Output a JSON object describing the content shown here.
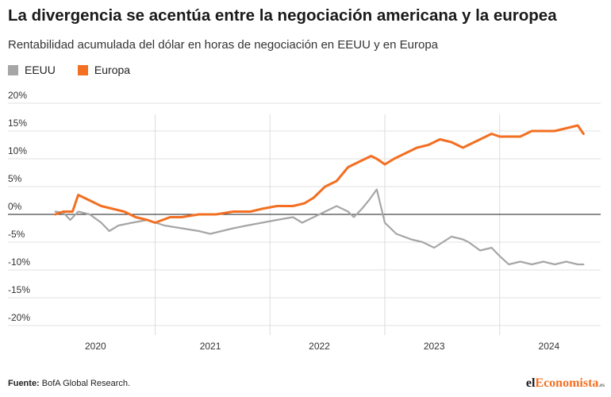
{
  "header": {
    "title": "La divergencia se acentúa entre la negociación americana y la europea",
    "subtitle": "Rentabilidad acumulada del dólar en horas de negociación en EEUU y en Europa"
  },
  "footer": {
    "source_label": "Fuente:",
    "source_text": "BofA Global Research.",
    "logo_prefix": "el",
    "logo_brand": "Economista",
    "logo_suffix": ".es"
  },
  "chart_data": {
    "type": "line",
    "title": "La divergencia se acentúa entre la negociación americana y la europea",
    "subtitle": "Rentabilidad acumulada del dólar en horas de negociación en EEUU y en Europa",
    "xlabel": "",
    "ylabel": "",
    "ylim": [
      -20,
      20
    ],
    "y_ticks": [
      20,
      15,
      10,
      5,
      0,
      -5,
      -10,
      -15,
      -20
    ],
    "y_tick_labels": [
      "20%",
      "15%",
      "10%",
      "5%",
      "0%",
      "-5%",
      "-10%",
      "-15%",
      "-20%"
    ],
    "x_range": [
      2019.6,
      2024.5
    ],
    "x_year_labels": [
      "2020",
      "2021",
      "2022",
      "2023",
      "2024"
    ],
    "x_year_label_positions": [
      2020.1,
      2021.1,
      2022.05,
      2023.05,
      2024.05
    ],
    "x_dividers": [
      2020.62,
      2021.62,
      2022.62,
      2023.62
    ],
    "grid": true,
    "zero_line": true,
    "legend_position": "top-left",
    "series": [
      {
        "name": "EEUU",
        "color": "#a6a6a6",
        "x": [
          2019.75,
          2019.82,
          2019.88,
          2019.95,
          2020.05,
          2020.15,
          2020.22,
          2020.3,
          2020.42,
          2020.55,
          2020.7,
          2020.85,
          2021.0,
          2021.1,
          2021.2,
          2021.3,
          2021.42,
          2021.55,
          2021.68,
          2021.82,
          2021.9,
          2022.0,
          2022.1,
          2022.2,
          2022.3,
          2022.35,
          2022.42,
          2022.48,
          2022.55,
          2022.62,
          2022.72,
          2022.85,
          2022.95,
          2023.05,
          2023.2,
          2023.3,
          2023.35,
          2023.45,
          2023.55,
          2023.62,
          2023.7,
          2023.8,
          2023.9,
          2024.0,
          2024.1,
          2024.2,
          2024.3,
          2024.35
        ],
        "y": [
          0.5,
          0.3,
          -1.0,
          0.5,
          0.0,
          -1.5,
          -3.0,
          -2.0,
          -1.5,
          -1.0,
          -2.0,
          -2.5,
          -3.0,
          -3.5,
          -3.0,
          -2.5,
          -2.0,
          -1.5,
          -1.0,
          -0.5,
          -1.5,
          -0.5,
          0.5,
          1.5,
          0.5,
          -0.5,
          1.0,
          2.5,
          4.5,
          -1.5,
          -3.5,
          -4.5,
          -5.0,
          -6.0,
          -4.0,
          -4.5,
          -5.0,
          -6.5,
          -6.0,
          -7.5,
          -9.0,
          -8.5,
          -9.0,
          -8.5,
          -9.0,
          -8.5,
          -9.0,
          -9.0
        ]
      },
      {
        "name": "Europa",
        "color": "#f36f21",
        "x": [
          2019.75,
          2019.82,
          2019.9,
          2019.95,
          2020.05,
          2020.15,
          2020.25,
          2020.35,
          2020.45,
          2020.55,
          2020.62,
          2020.75,
          2020.85,
          2021.0,
          2021.15,
          2021.3,
          2021.45,
          2021.55,
          2021.68,
          2021.82,
          2021.92,
          2022.0,
          2022.1,
          2022.2,
          2022.3,
          2022.4,
          2022.5,
          2022.55,
          2022.62,
          2022.7,
          2022.8,
          2022.9,
          2023.0,
          2023.1,
          2023.2,
          2023.3,
          2023.4,
          2023.5,
          2023.55,
          2023.62,
          2023.7,
          2023.8,
          2023.9,
          2024.0,
          2024.1,
          2024.2,
          2024.3,
          2024.35
        ],
        "y": [
          0.0,
          0.5,
          0.5,
          3.5,
          2.5,
          1.5,
          1.0,
          0.5,
          -0.5,
          -1.0,
          -1.5,
          -0.5,
          -0.5,
          0.0,
          0.0,
          0.5,
          0.5,
          1.0,
          1.5,
          1.5,
          2.0,
          3.0,
          5.0,
          6.0,
          8.5,
          9.5,
          10.5,
          10.0,
          9.0,
          10.0,
          11.0,
          12.0,
          12.5,
          13.5,
          13.0,
          12.0,
          13.0,
          14.0,
          14.5,
          14.0,
          14.0,
          14.0,
          15.0,
          15.0,
          15.0,
          15.5,
          16.0,
          14.5
        ]
      }
    ]
  }
}
